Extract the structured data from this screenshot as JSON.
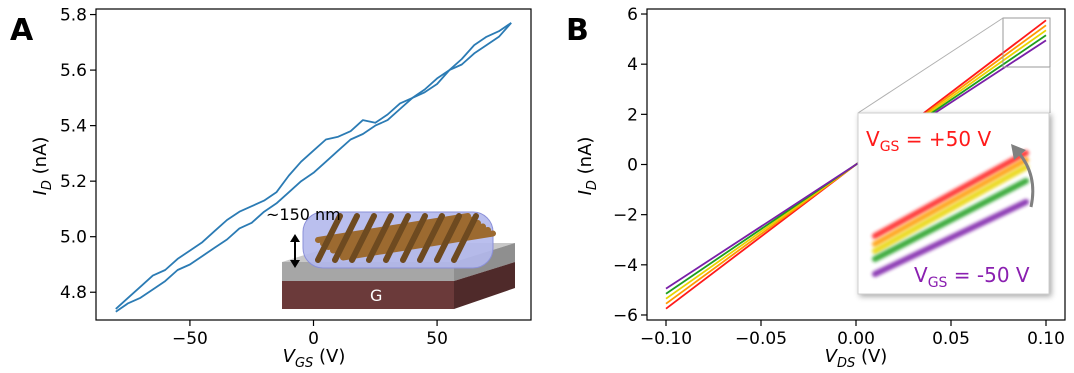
{
  "panels": {
    "a_letter": "A",
    "b_letter": "B"
  },
  "chart_data": [
    {
      "type": "line",
      "panel": "A",
      "xlabel": "V",
      "xlabel_sub": "GS",
      "xlabel_unit": " (V)",
      "ylabel": "I",
      "ylabel_sub": "D",
      "ylabel_unit": " (nA)",
      "xlim": [
        -88,
        88
      ],
      "ylim": [
        4.7,
        5.82
      ],
      "xticks": [
        -50,
        0,
        50
      ],
      "xtick_labels": [
        "−50",
        "0",
        "50"
      ],
      "yticks": [
        4.8,
        5.0,
        5.2,
        5.4,
        5.6,
        5.8
      ],
      "ytick_labels": [
        "4.8",
        "5.0",
        "5.2",
        "5.4",
        "5.6",
        "5.8"
      ],
      "color": "#2b7bb4",
      "series": [
        {
          "x": [
            -80,
            -75,
            -70,
            -65,
            -60,
            -55,
            -50,
            -45,
            -40,
            -35,
            -30,
            -25,
            -20,
            -15,
            -10,
            -5,
            0,
            5,
            10,
            15,
            20,
            25,
            30,
            35,
            40,
            45,
            50,
            55,
            60,
            65,
            70,
            75,
            80
          ],
          "y": [
            4.74,
            4.78,
            4.82,
            4.86,
            4.88,
            4.92,
            4.95,
            4.98,
            5.02,
            5.06,
            5.09,
            5.11,
            5.13,
            5.16,
            5.22,
            5.27,
            5.31,
            5.35,
            5.36,
            5.38,
            5.42,
            5.41,
            5.44,
            5.48,
            5.5,
            5.52,
            5.55,
            5.6,
            5.62,
            5.66,
            5.69,
            5.72,
            5.77
          ]
        },
        {
          "x": [
            80,
            75,
            70,
            65,
            60,
            55,
            50,
            45,
            40,
            35,
            30,
            25,
            20,
            15,
            10,
            5,
            0,
            -5,
            -10,
            -15,
            -20,
            -25,
            -30,
            -35,
            -40,
            -45,
            -50,
            -55,
            -60,
            -65,
            -70,
            -75,
            -80
          ],
          "y": [
            5.77,
            5.74,
            5.72,
            5.69,
            5.64,
            5.6,
            5.57,
            5.53,
            5.5,
            5.46,
            5.42,
            5.4,
            5.37,
            5.35,
            5.31,
            5.27,
            5.23,
            5.2,
            5.16,
            5.12,
            5.09,
            5.05,
            5.03,
            4.99,
            4.96,
            4.93,
            4.9,
            4.88,
            4.84,
            4.81,
            4.78,
            4.76,
            4.73
          ]
        }
      ],
      "inset": {
        "thickness_label": "~150 nm",
        "gate_label": "G",
        "colors": {
          "rods": "#9c6a30",
          "rods_dark": "#6e4a20",
          "film": "#aeb4e8",
          "dielectric": "#bfbfbf",
          "gate": "#6b3a3a"
        }
      }
    },
    {
      "type": "line",
      "panel": "B",
      "xlabel": "V",
      "xlabel_sub": "DS",
      "xlabel_unit": " (V)",
      "ylabel": "I",
      "ylabel_sub": "D",
      "ylabel_unit": " (nA)",
      "xlim": [
        -0.11,
        0.11
      ],
      "ylim": [
        -6.2,
        6.2
      ],
      "xticks": [
        -0.1,
        -0.05,
        0.0,
        0.05,
        0.1
      ],
      "xtick_labels": [
        "−0.10",
        "−0.05",
        "0.00",
        "0.05",
        "0.10"
      ],
      "yticks": [
        -6,
        -4,
        -2,
        0,
        2,
        4,
        6
      ],
      "ytick_labels": [
        "−6",
        "−4",
        "−2",
        "0",
        "2",
        "4",
        "6"
      ],
      "series": [
        {
          "color": "#ff1a1a",
          "x": [
            -0.1,
            0.1
          ],
          "y": [
            -5.75,
            5.75
          ]
        },
        {
          "color": "#ff9900",
          "x": [
            -0.1,
            0.1
          ],
          "y": [
            -5.55,
            5.55
          ]
        },
        {
          "color": "#e8d400",
          "x": [
            -0.1,
            0.1
          ],
          "y": [
            -5.35,
            5.35
          ]
        },
        {
          "color": "#1e9e1e",
          "x": [
            -0.1,
            0.1
          ],
          "y": [
            -5.15,
            5.15
          ]
        },
        {
          "color": "#7a1fa8",
          "x": [
            -0.1,
            0.1
          ],
          "y": [
            -4.95,
            4.95
          ]
        }
      ],
      "zoom_inset": {
        "top_label": "V",
        "top_label_sub": "GS",
        "top_label_value": " = +50 V",
        "top_color": "#ff1a1a",
        "bottom_label": "V",
        "bottom_label_sub": "GS",
        "bottom_label_value": " = -50 V",
        "bottom_color": "#8a1fb0",
        "arrow_color": "#808080"
      }
    }
  ]
}
